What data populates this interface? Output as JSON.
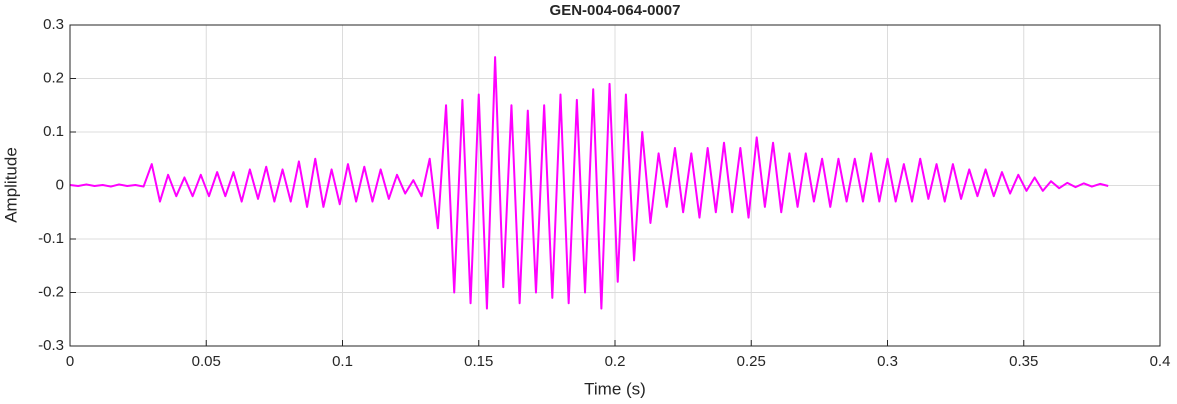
{
  "chart_data": {
    "type": "line",
    "title": "GEN-004-064-0007",
    "x_label": "Time (s)",
    "y_label": "Amplitude",
    "x": [
      0,
      0.003,
      0.006,
      0.009,
      0.012,
      0.015,
      0.018,
      0.021,
      0.024,
      0.027,
      0.03,
      0.033,
      0.036,
      0.039,
      0.042,
      0.045,
      0.048,
      0.051,
      0.054,
      0.057,
      0.06,
      0.063,
      0.066,
      0.069,
      0.072,
      0.075,
      0.078,
      0.081,
      0.084,
      0.087,
      0.09,
      0.093,
      0.096,
      0.099,
      0.102,
      0.105,
      0.108,
      0.111,
      0.114,
      0.117,
      0.12,
      0.123,
      0.126,
      0.129,
      0.132,
      0.135,
      0.138,
      0.141,
      0.144,
      0.147,
      0.15,
      0.153,
      0.156,
      0.159,
      0.162,
      0.165,
      0.168,
      0.171,
      0.174,
      0.177,
      0.18,
      0.183,
      0.186,
      0.189,
      0.192,
      0.195,
      0.198,
      0.201,
      0.204,
      0.207,
      0.21,
      0.213,
      0.216,
      0.219,
      0.222,
      0.225,
      0.228,
      0.231,
      0.234,
      0.237,
      0.24,
      0.243,
      0.246,
      0.249,
      0.252,
      0.255,
      0.258,
      0.261,
      0.264,
      0.267,
      0.27,
      0.273,
      0.276,
      0.279,
      0.282,
      0.285,
      0.288,
      0.291,
      0.294,
      0.297,
      0.3,
      0.303,
      0.306,
      0.309,
      0.312,
      0.315,
      0.318,
      0.321,
      0.324,
      0.327,
      0.33,
      0.333,
      0.336,
      0.339,
      0.342,
      0.345,
      0.348,
      0.351,
      0.354,
      0.357,
      0.36,
      0.363,
      0.366,
      0.369,
      0.372,
      0.375,
      0.378,
      0.381
    ],
    "series": [
      {
        "color": "#ff00ff",
        "values": [
          0.001,
          -0.001,
          0.002,
          -0.001,
          0.001,
          -0.002,
          0.002,
          -0.001,
          0.001,
          -0.002,
          0.04,
          -0.03,
          0.02,
          -0.02,
          0.015,
          -0.02,
          0.02,
          -0.02,
          0.025,
          -0.02,
          0.025,
          -0.03,
          0.03,
          -0.025,
          0.035,
          -0.03,
          0.03,
          -0.03,
          0.045,
          -0.04,
          0.05,
          -0.04,
          0.03,
          -0.035,
          0.04,
          -0.03,
          0.035,
          -0.03,
          0.03,
          -0.025,
          0.02,
          -0.015,
          0.01,
          -0.02,
          0.05,
          -0.08,
          0.15,
          -0.2,
          0.16,
          -0.22,
          0.17,
          -0.23,
          0.24,
          -0.19,
          0.15,
          -0.22,
          0.14,
          -0.2,
          0.15,
          -0.21,
          0.17,
          -0.22,
          0.16,
          -0.2,
          0.18,
          -0.23,
          0.19,
          -0.18,
          0.17,
          -0.14,
          0.1,
          -0.07,
          0.06,
          -0.04,
          0.07,
          -0.05,
          0.06,
          -0.06,
          0.07,
          -0.05,
          0.08,
          -0.05,
          0.07,
          -0.06,
          0.09,
          -0.04,
          0.08,
          -0.05,
          0.06,
          -0.04,
          0.06,
          -0.03,
          0.05,
          -0.04,
          0.05,
          -0.03,
          0.05,
          -0.03,
          0.06,
          -0.03,
          0.05,
          -0.03,
          0.04,
          -0.03,
          0.05,
          -0.025,
          0.04,
          -0.03,
          0.04,
          -0.025,
          0.03,
          -0.02,
          0.03,
          -0.02,
          0.025,
          -0.015,
          0.02,
          -0.01,
          0.015,
          -0.01,
          0.008,
          -0.005,
          0.005,
          -0.003,
          0.004,
          -0.002,
          0.003,
          -0.001
        ]
      }
    ],
    "xlim": [
      0,
      0.4
    ],
    "xticks": [
      0,
      0.05,
      0.1,
      0.15,
      0.2,
      0.25,
      0.3,
      0.35,
      0.4
    ],
    "ylim": [
      -0.3,
      0.3
    ],
    "yticks": [
      -0.3,
      -0.2,
      -0.1,
      0,
      0.1,
      0.2,
      0.3
    ],
    "grid": true
  }
}
